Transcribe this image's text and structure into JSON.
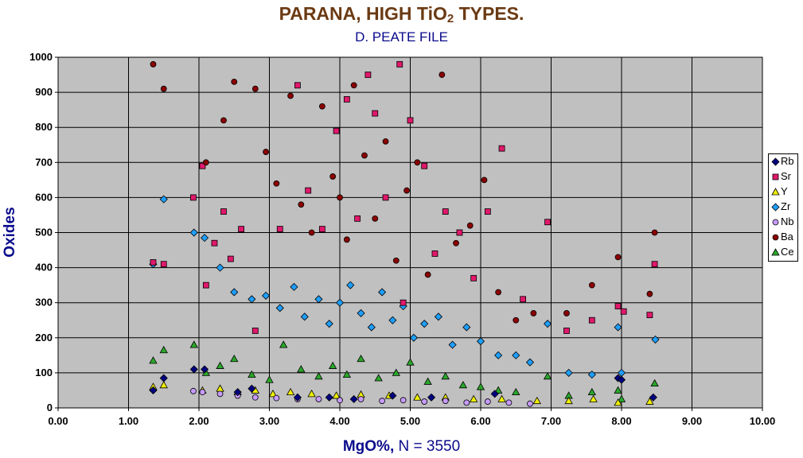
{
  "chart_data": {
    "type": "scatter",
    "title": "PARANA, HIGH TiO",
    "title_sub": "2",
    "title_suffix": " TYPES.",
    "subtitle": "D. PEATE FILE",
    "xlabel": "MgO%,",
    "xlabel_suffix": "  N = 3550",
    "ylabel": "Oxides",
    "xlim": [
      0,
      10
    ],
    "ylim": [
      0,
      1000
    ],
    "x_ticks": [
      "0.00",
      "1.00",
      "2.00",
      "3.00",
      "4.00",
      "5.00",
      "6.00",
      "7.00",
      "8.00",
      "9.00",
      "10.00"
    ],
    "y_ticks": [
      "0",
      "100",
      "200",
      "300",
      "400",
      "500",
      "600",
      "700",
      "800",
      "900",
      "1000"
    ],
    "grid": true,
    "plot_background": "#c0c0c0",
    "legend_position": "right",
    "series": [
      {
        "name": "Rb",
        "marker": "diamond",
        "color": "#000080",
        "x": [
          1.35,
          1.5,
          1.93,
          2.08,
          2.55,
          2.75,
          3.4,
          3.85,
          4.2,
          4.75,
          5.3,
          6.2,
          7.95,
          8.0,
          8.45
        ],
        "y": [
          50,
          85,
          110,
          110,
          45,
          55,
          30,
          30,
          25,
          35,
          30,
          40,
          85,
          80,
          30
        ]
      },
      {
        "name": "Sr",
        "marker": "square",
        "color": "#e0186b",
        "x": [
          1.35,
          1.5,
          1.92,
          2.05,
          2.1,
          2.22,
          2.35,
          2.45,
          2.6,
          2.8,
          3.15,
          3.4,
          3.55,
          3.75,
          3.95,
          4.1,
          4.25,
          4.4,
          4.5,
          4.65,
          4.85,
          4.9,
          5.0,
          5.2,
          5.35,
          5.5,
          5.7,
          5.9,
          6.1,
          6.3,
          6.6,
          6.95,
          7.22,
          7.58,
          7.95,
          8.03,
          8.4,
          8.47
        ],
        "y": [
          415,
          410,
          600,
          690,
          350,
          470,
          560,
          425,
          510,
          220,
          510,
          920,
          620,
          510,
          790,
          880,
          540,
          950,
          840,
          600,
          980,
          300,
          820,
          690,
          440,
          560,
          500,
          370,
          560,
          740,
          310,
          530,
          220,
          250,
          290,
          275,
          265,
          410
        ]
      },
      {
        "name": "Y",
        "marker": "triangle",
        "color": "#f0f000",
        "x": [
          1.35,
          1.5,
          2.05,
          2.3,
          2.55,
          2.8,
          3.05,
          3.3,
          3.6,
          3.95,
          4.3,
          4.7,
          5.1,
          5.5,
          5.9,
          6.3,
          6.8,
          7.25,
          7.6,
          7.95,
          8.4
        ],
        "y": [
          60,
          65,
          50,
          55,
          45,
          50,
          40,
          45,
          40,
          35,
          38,
          35,
          30,
          30,
          25,
          25,
          20,
          20,
          25,
          15,
          18
        ]
      },
      {
        "name": "Zr",
        "marker": "diamond",
        "color": "#1e9fff",
        "x": [
          1.35,
          1.5,
          1.93,
          2.08,
          2.3,
          2.5,
          2.75,
          2.95,
          3.15,
          3.35,
          3.5,
          3.7,
          3.85,
          4.0,
          4.15,
          4.3,
          4.45,
          4.6,
          4.75,
          4.9,
          5.05,
          5.2,
          5.4,
          5.6,
          5.8,
          6.0,
          6.25,
          6.5,
          6.7,
          6.95,
          7.25,
          7.58,
          7.95,
          8.0,
          8.48
        ],
        "y": [
          410,
          595,
          500,
          485,
          400,
          330,
          310,
          320,
          285,
          345,
          260,
          310,
          240,
          300,
          350,
          270,
          230,
          330,
          250,
          290,
          200,
          240,
          260,
          180,
          230,
          190,
          150,
          150,
          130,
          240,
          100,
          95,
          230,
          100,
          195
        ]
      },
      {
        "name": "Nb",
        "marker": "circle",
        "color": "#c89bff",
        "x": [
          1.92,
          2.05,
          2.3,
          2.55,
          2.8,
          3.1,
          3.4,
          3.7,
          4.0,
          4.3,
          4.6,
          4.9,
          5.2,
          5.5,
          5.8,
          6.1,
          6.4,
          6.7
        ],
        "y": [
          48,
          45,
          40,
          35,
          30,
          28,
          25,
          25,
          22,
          25,
          20,
          22,
          18,
          20,
          15,
          18,
          15,
          12
        ]
      },
      {
        "name": "Ba",
        "marker": "circle",
        "color": "#8b0000",
        "x": [
          1.35,
          1.5,
          2.1,
          2.35,
          2.5,
          2.8,
          2.95,
          3.1,
          3.3,
          3.45,
          3.6,
          3.75,
          3.9,
          4.0,
          4.1,
          4.2,
          4.35,
          4.5,
          4.65,
          4.8,
          4.95,
          5.1,
          5.25,
          5.45,
          5.65,
          5.85,
          6.05,
          6.25,
          6.5,
          6.75,
          7.22,
          7.58,
          7.95,
          8.4,
          8.47
        ],
        "y": [
          980,
          910,
          700,
          820,
          930,
          910,
          730,
          640,
          890,
          580,
          500,
          860,
          660,
          600,
          480,
          920,
          720,
          540,
          760,
          420,
          620,
          700,
          380,
          950,
          470,
          520,
          650,
          330,
          250,
          270,
          270,
          350,
          430,
          325,
          500
        ]
      },
      {
        "name": "Ce",
        "marker": "triangle",
        "color": "#2aa82a",
        "x": [
          1.35,
          1.5,
          1.93,
          2.1,
          2.3,
          2.5,
          2.75,
          3.0,
          3.2,
          3.45,
          3.7,
          3.9,
          4.1,
          4.3,
          4.55,
          4.8,
          5.0,
          5.25,
          5.5,
          5.75,
          6.0,
          6.25,
          6.5,
          6.95,
          7.25,
          7.58,
          7.95,
          8.0,
          8.47
        ],
        "y": [
          135,
          165,
          180,
          100,
          120,
          140,
          95,
          80,
          180,
          110,
          90,
          120,
          95,
          140,
          85,
          100,
          130,
          75,
          90,
          65,
          60,
          50,
          45,
          90,
          35,
          45,
          50,
          25,
          70
        ]
      }
    ]
  }
}
